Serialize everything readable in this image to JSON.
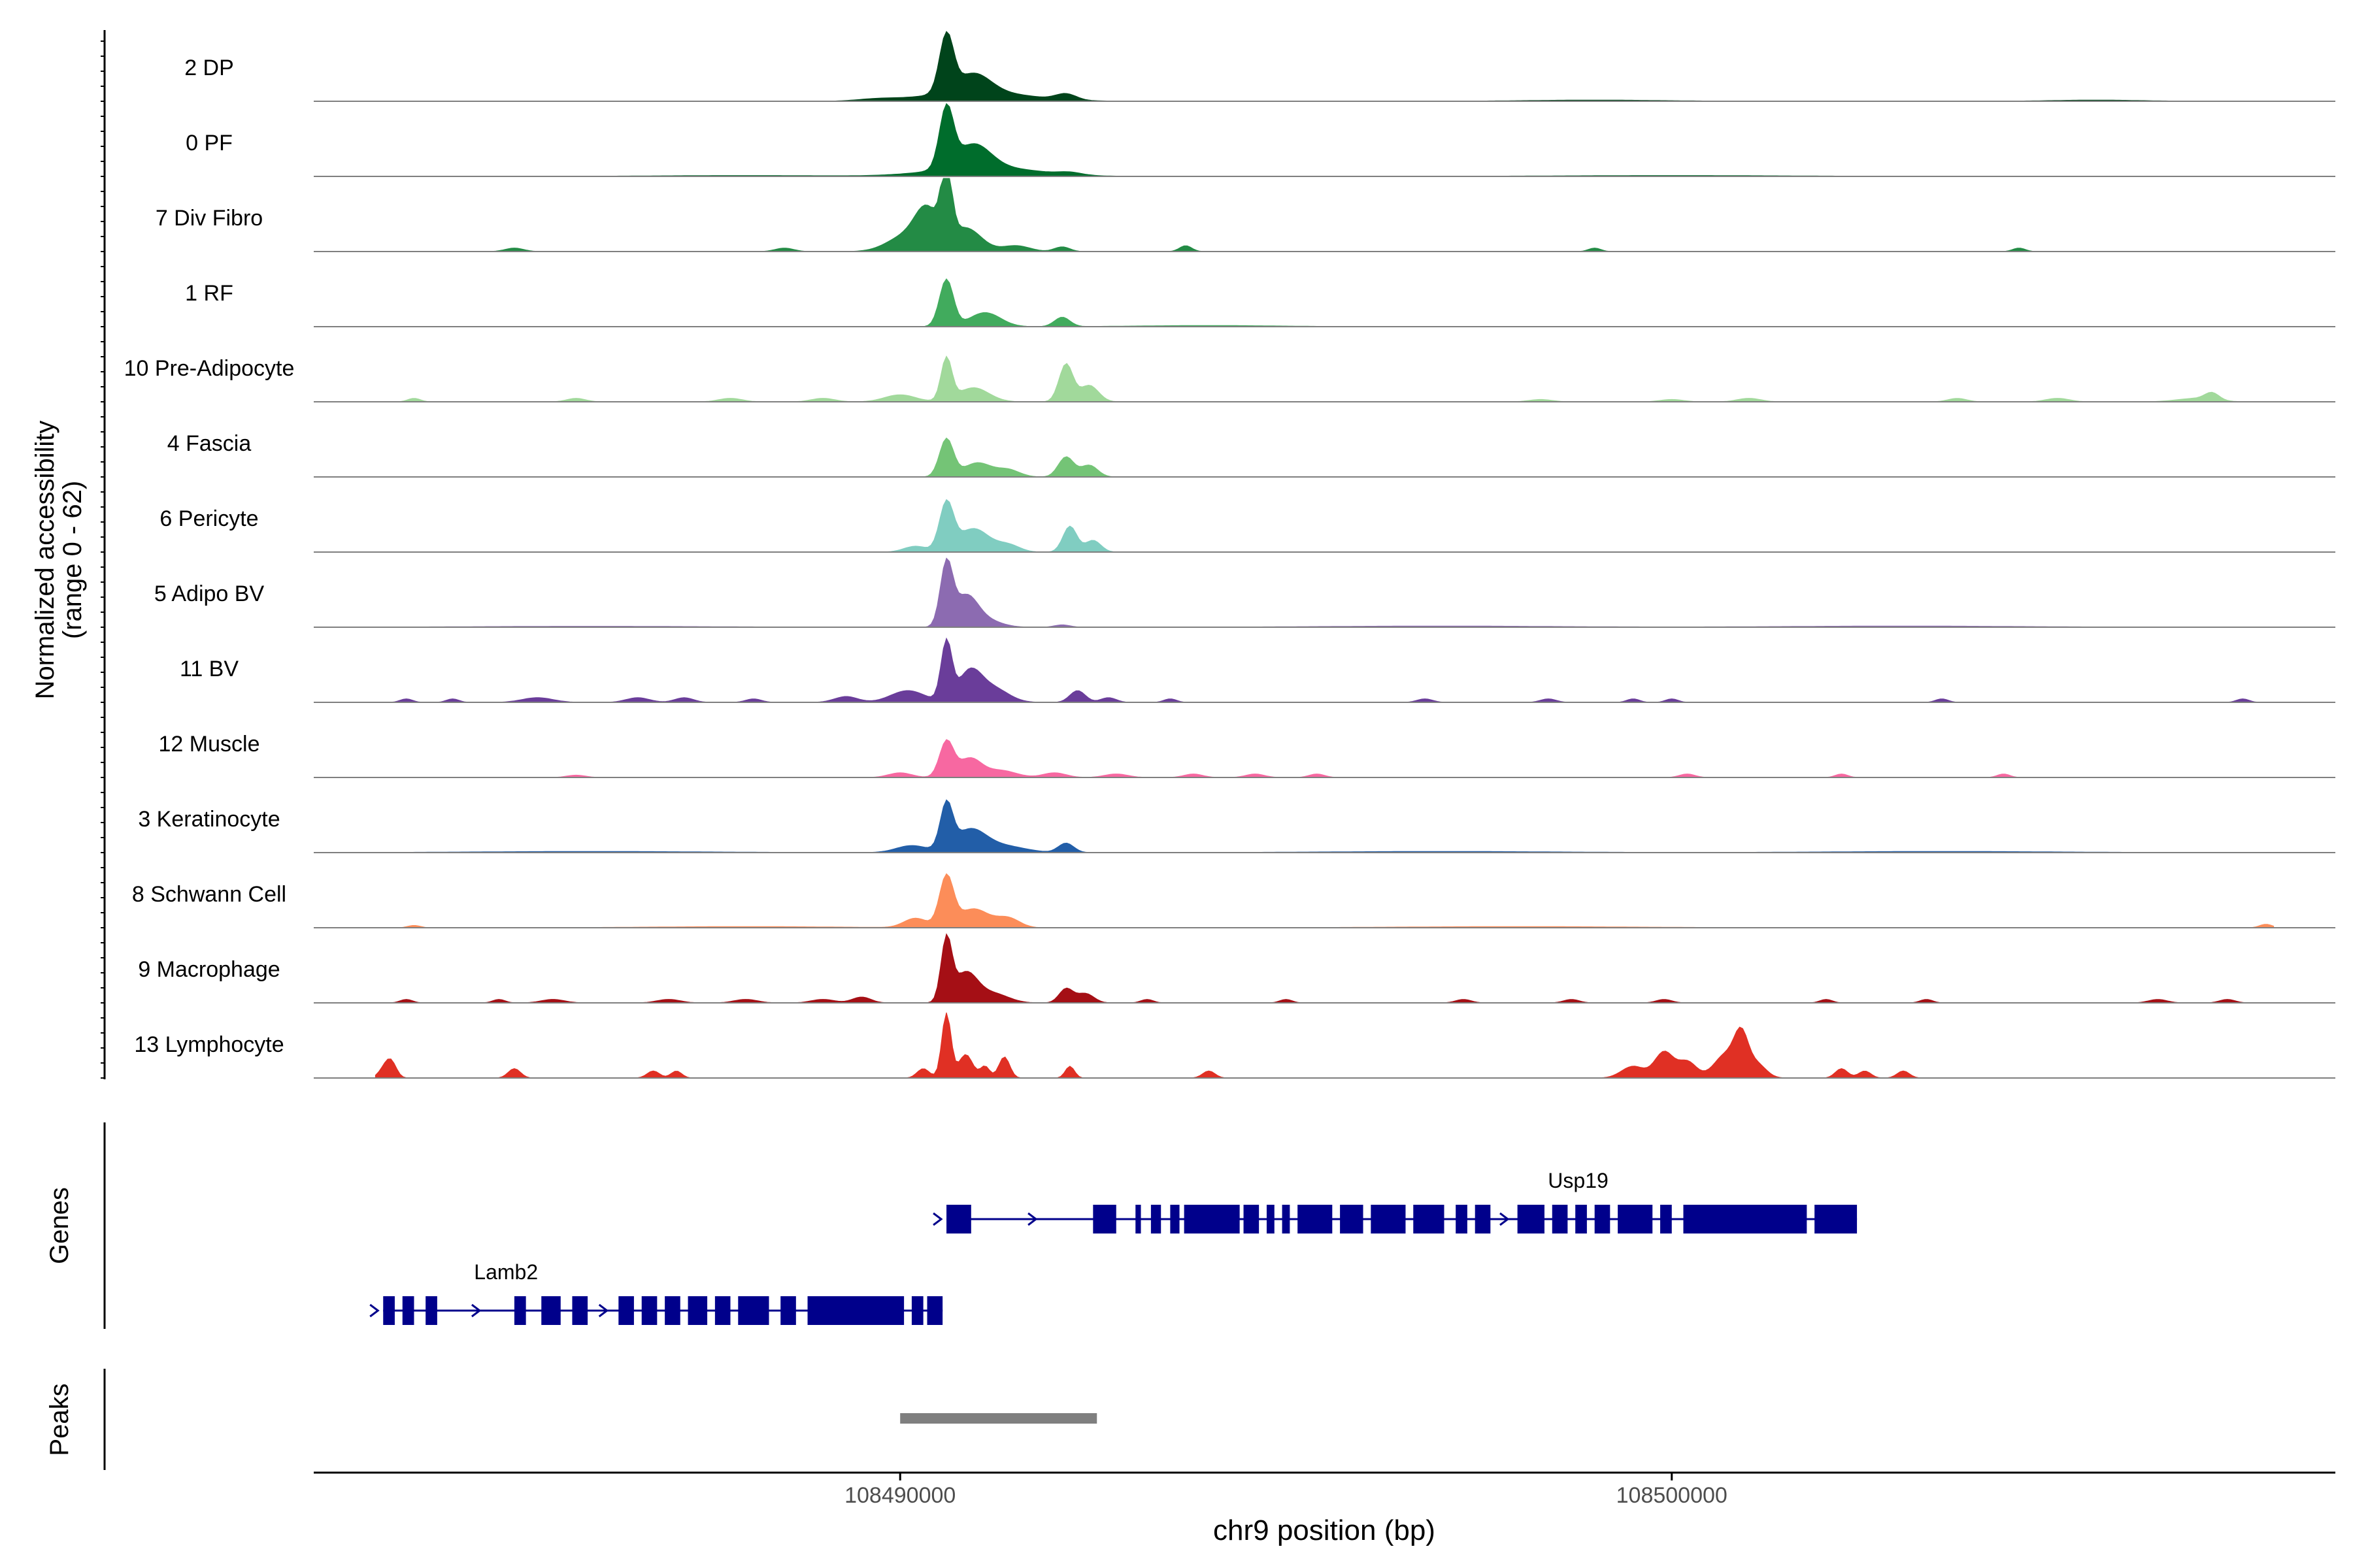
{
  "chart_data": {
    "type": "area",
    "subtype": "genome-coverage-tracks",
    "xlabel": "chr9 position (bp)",
    "ylabel_line1": "Normalized accessibility",
    "ylabel_line2": "(range 0 - 62)",
    "y_range": [
      0,
      62
    ],
    "xlim": [
      108482400,
      108508600
    ],
    "x_ticks": [
      {
        "value": 108490000,
        "label": "108490000"
      },
      {
        "value": 108500000,
        "label": "108500000"
      }
    ],
    "grid": false,
    "genes_label": "Genes",
    "peaks_label": "Peaks",
    "series": [
      {
        "name": "2 DP",
        "color": "#00441b",
        "peaks": [
          [
            108490600,
            48,
            90
          ],
          [
            108490950,
            16,
            220
          ],
          [
            108491000,
            8,
            650
          ],
          [
            108492150,
            5,
            130
          ],
          [
            108489700,
            1.5,
            250
          ],
          [
            108499000,
            1,
            900
          ],
          [
            108505500,
            1,
            600
          ]
        ]
      },
      {
        "name": "0 PF",
        "color": "#006d2c",
        "peaks": [
          [
            108490600,
            50,
            90
          ],
          [
            108490950,
            20,
            220
          ],
          [
            108491100,
            8,
            650
          ],
          [
            108492200,
            2,
            150
          ],
          [
            108488000,
            0.8,
            1200
          ],
          [
            108500000,
            0.8,
            1500
          ]
        ]
      },
      {
        "name": "7 Div Fibro",
        "color": "#238b45",
        "peaks": [
          [
            108490600,
            58,
            70
          ],
          [
            108490350,
            30,
            150
          ],
          [
            108490850,
            20,
            200
          ],
          [
            108490100,
            14,
            250
          ],
          [
            108491500,
            5,
            180
          ],
          [
            108492100,
            4,
            100
          ],
          [
            108493700,
            5,
            80
          ],
          [
            108485000,
            3,
            120
          ],
          [
            108488500,
            3,
            120
          ],
          [
            108499000,
            3,
            80
          ],
          [
            108504500,
            3,
            80
          ]
        ]
      },
      {
        "name": "1 RF",
        "color": "#41ab5d",
        "peaks": [
          [
            108490600,
            40,
            90
          ],
          [
            108491100,
            12,
            200
          ],
          [
            108492100,
            8,
            100
          ],
          [
            108494000,
            1,
            900
          ]
        ]
      },
      {
        "name": "10 Pre-Adipocyte",
        "color": "#a1d99b",
        "peaks": [
          [
            108490600,
            36,
            70
          ],
          [
            108490950,
            12,
            200
          ],
          [
            108492150,
            32,
            90
          ],
          [
            108492450,
            14,
            120
          ],
          [
            108490000,
            6,
            200
          ],
          [
            108489000,
            3,
            150
          ],
          [
            108487800,
            3,
            150
          ],
          [
            108485800,
            3,
            120
          ],
          [
            108483700,
            3,
            80
          ],
          [
            108507000,
            6,
            90
          ],
          [
            108506800,
            3,
            250
          ],
          [
            108505000,
            3,
            150
          ],
          [
            108503700,
            3,
            120
          ],
          [
            108501000,
            3,
            150
          ],
          [
            108500000,
            2,
            150
          ],
          [
            108498300,
            2,
            150
          ]
        ]
      },
      {
        "name": "4 Fascia",
        "color": "#74c476",
        "peaks": [
          [
            108490600,
            32,
            90
          ],
          [
            108491000,
            12,
            180
          ],
          [
            108491400,
            6,
            150
          ],
          [
            108492150,
            17,
            100
          ],
          [
            108492450,
            10,
            110
          ]
        ]
      },
      {
        "name": "6 Pericyte",
        "color": "#80cdc1",
        "peaks": [
          [
            108490600,
            40,
            90
          ],
          [
            108490950,
            20,
            200
          ],
          [
            108491400,
            6,
            150
          ],
          [
            108492200,
            22,
            90
          ],
          [
            108492500,
            10,
            100
          ],
          [
            108490200,
            5,
            150
          ]
        ]
      },
      {
        "name": "5 Adipo BV",
        "color": "#8c6bb1",
        "peaks": [
          [
            108490600,
            52,
            80
          ],
          [
            108490850,
            25,
            150
          ],
          [
            108491100,
            6,
            200
          ],
          [
            108492100,
            2,
            100
          ],
          [
            108497000,
            1,
            1500
          ],
          [
            108503000,
            1,
            1500
          ],
          [
            108486000,
            0.8,
            1500
          ]
        ]
      },
      {
        "name": "11 BV",
        "color": "#6a3d9a",
        "peaks": [
          [
            108490600,
            50,
            70
          ],
          [
            108490900,
            25,
            150
          ],
          [
            108491200,
            12,
            200
          ],
          [
            108490100,
            10,
            220
          ],
          [
            108489300,
            5,
            150
          ],
          [
            108492300,
            10,
            100
          ],
          [
            108492700,
            4,
            100
          ],
          [
            108485300,
            4,
            200
          ],
          [
            108486600,
            4,
            150
          ],
          [
            108487200,
            4,
            120
          ],
          [
            108488100,
            3,
            100
          ],
          [
            108483600,
            3,
            80
          ],
          [
            108484200,
            3,
            80
          ],
          [
            108493500,
            3,
            80
          ],
          [
            108496800,
            3,
            100
          ],
          [
            108498400,
            3,
            100
          ],
          [
            108499500,
            3,
            80
          ],
          [
            108500000,
            3,
            80
          ],
          [
            108503500,
            3,
            80
          ],
          [
            108507400,
            3,
            80
          ]
        ]
      },
      {
        "name": "12 Muscle",
        "color": "#f768a1",
        "peaks": [
          [
            108490600,
            30,
            90
          ],
          [
            108490900,
            16,
            150
          ],
          [
            108491300,
            6,
            200
          ],
          [
            108490000,
            4,
            150
          ],
          [
            108492000,
            4,
            150
          ],
          [
            108492800,
            3,
            150
          ],
          [
            108493800,
            3,
            120
          ],
          [
            108494600,
            3,
            120
          ],
          [
            108495400,
            3,
            100
          ],
          [
            108485800,
            2,
            120
          ],
          [
            108500200,
            3,
            100
          ],
          [
            108502200,
            3,
            80
          ],
          [
            108504300,
            3,
            80
          ]
        ]
      },
      {
        "name": "3 Keratinocyte",
        "color": "#225ea8",
        "peaks": [
          [
            108490600,
            38,
            80
          ],
          [
            108490900,
            18,
            200
          ],
          [
            108491300,
            6,
            300
          ],
          [
            108492150,
            8,
            100
          ],
          [
            108490150,
            6,
            200
          ],
          [
            108486000,
            1,
            1500
          ],
          [
            108497000,
            1,
            1500
          ],
          [
            108503500,
            1,
            1500
          ]
        ]
      },
      {
        "name": "8 Schwann Cell",
        "color": "#fc8d59",
        "peaks": [
          [
            108490600,
            42,
            90
          ],
          [
            108490950,
            16,
            200
          ],
          [
            108491400,
            8,
            150
          ],
          [
            108490200,
            8,
            150
          ],
          [
            108507700,
            3,
            80
          ],
          [
            108483700,
            2,
            80
          ],
          [
            108488000,
            1,
            1200
          ],
          [
            108498000,
            1,
            1500
          ]
        ]
      },
      {
        "name": "9 Macrophage",
        "color": "#a50f15",
        "peaks": [
          [
            108490600,
            52,
            70
          ],
          [
            108490850,
            25,
            150
          ],
          [
            108491200,
            8,
            200
          ],
          [
            108492150,
            12,
            90
          ],
          [
            108492400,
            8,
            110
          ],
          [
            108489500,
            5,
            120
          ],
          [
            108489000,
            3,
            150
          ],
          [
            108488000,
            3,
            150
          ],
          [
            108487000,
            3,
            150
          ],
          [
            108485500,
            3,
            150
          ],
          [
            108483600,
            3,
            80
          ],
          [
            108484800,
            3,
            80
          ],
          [
            108493200,
            3,
            80
          ],
          [
            108495000,
            3,
            80
          ],
          [
            108497300,
            3,
            100
          ],
          [
            108498700,
            3,
            100
          ],
          [
            108499900,
            3,
            100
          ],
          [
            108502000,
            3,
            80
          ],
          [
            108503300,
            3,
            80
          ],
          [
            108506300,
            3,
            120
          ],
          [
            108507200,
            3,
            100
          ]
        ]
      },
      {
        "name": "13 Lymphocyte",
        "color": "#e03024",
        "peaks": [
          [
            108490600,
            55,
            60
          ],
          [
            108490850,
            20,
            90
          ],
          [
            108491350,
            18,
            70
          ],
          [
            108491100,
            10,
            60
          ],
          [
            108492200,
            10,
            60
          ],
          [
            108490300,
            8,
            80
          ],
          [
            108483400,
            14,
            70
          ],
          [
            108483300,
            6,
            70
          ],
          [
            108485000,
            8,
            80
          ],
          [
            108486800,
            6,
            80
          ],
          [
            108487100,
            6,
            70
          ],
          [
            108494000,
            6,
            80
          ],
          [
            108499500,
            10,
            150
          ],
          [
            108499900,
            22,
            120
          ],
          [
            108500200,
            14,
            120
          ],
          [
            108500700,
            20,
            150
          ],
          [
            108500900,
            32,
            90
          ],
          [
            108501100,
            12,
            120
          ],
          [
            108502200,
            8,
            80
          ],
          [
            108502500,
            6,
            80
          ],
          [
            108503000,
            6,
            80
          ]
        ]
      }
    ],
    "genes": [
      {
        "name": "Usp19",
        "strand": "+",
        "row": 1,
        "start": 108490600,
        "end": 108502400,
        "exons": [
          [
            108490600,
            108490920
          ],
          [
            108492500,
            108492800
          ],
          [
            108493050,
            108493120
          ],
          [
            108493250,
            108493380
          ],
          [
            108493500,
            108493620
          ],
          [
            108493680,
            108494400
          ],
          [
            108494450,
            108494650
          ],
          [
            108494750,
            108494850
          ],
          [
            108494950,
            108495050
          ],
          [
            108495150,
            108495600
          ],
          [
            108495700,
            108496000
          ],
          [
            108496100,
            108496550
          ],
          [
            108496650,
            108497050
          ],
          [
            108497200,
            108497350
          ],
          [
            108497450,
            108497650
          ],
          [
            108498000,
            108498350
          ],
          [
            108498450,
            108498650
          ],
          [
            108498750,
            108498900
          ],
          [
            108499000,
            108499200
          ],
          [
            108499300,
            108499750
          ],
          [
            108499850,
            108500000
          ],
          [
            108500150,
            108501750
          ],
          [
            108501850,
            108502400
          ]
        ]
      },
      {
        "name": "Lamb2",
        "strand": "+",
        "row": 2,
        "start": 108483300,
        "end": 108490550,
        "exons": [
          [
            108483300,
            108483450
          ],
          [
            108483550,
            108483700
          ],
          [
            108483850,
            108484000
          ],
          [
            108485000,
            108485150
          ],
          [
            108485350,
            108485600
          ],
          [
            108485750,
            108485950
          ],
          [
            108486350,
            108486550
          ],
          [
            108486650,
            108486850
          ],
          [
            108486950,
            108487150
          ],
          [
            108487250,
            108487500
          ],
          [
            108487600,
            108487800
          ],
          [
            108487900,
            108488300
          ],
          [
            108488450,
            108488650
          ],
          [
            108488800,
            108490050
          ],
          [
            108490150,
            108490300
          ],
          [
            108490350,
            108490550
          ]
        ]
      }
    ],
    "peaks": [
      [
        108490000,
        108492550
      ]
    ]
  }
}
